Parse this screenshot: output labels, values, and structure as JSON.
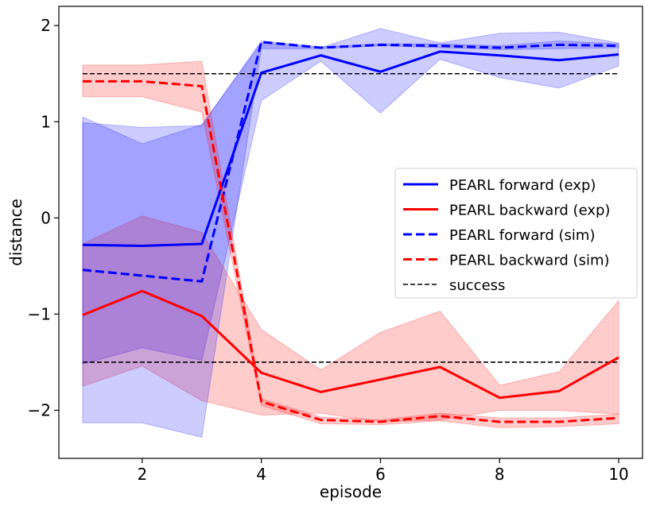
{
  "chart_data": {
    "type": "line",
    "title": "",
    "xlabel": "episode",
    "ylabel": "distance",
    "xlim": [
      0.6,
      10.4
    ],
    "ylim": [
      -2.5,
      2.2
    ],
    "xticks": [
      2,
      4,
      6,
      8,
      10
    ],
    "xtick_labels": [
      "2",
      "4",
      "6",
      "8",
      "10"
    ],
    "yticks": [
      -2,
      -1,
      0,
      1,
      2
    ],
    "ytick_labels": [
      "−2",
      "−1",
      "0",
      "1",
      "2"
    ],
    "grid": false,
    "legend_position": "center-right",
    "x": [
      1,
      2,
      3,
      4,
      5,
      6,
      7,
      8,
      9,
      10
    ],
    "series": [
      {
        "name": "PEARL forward (exp)",
        "color": "#0000ff",
        "style": "solid",
        "values": [
          -0.28,
          -0.29,
          -0.27,
          1.51,
          1.69,
          1.52,
          1.73,
          1.69,
          1.64,
          1.7
        ],
        "band_upper": [
          1.05,
          0.77,
          0.97,
          1.82,
          1.77,
          1.97,
          1.82,
          1.92,
          1.93,
          1.82
        ],
        "band_lower": [
          -1.52,
          -1.35,
          -1.48,
          1.22,
          1.63,
          1.09,
          1.65,
          1.46,
          1.35,
          1.58
        ]
      },
      {
        "name": "PEARL backward (exp)",
        "color": "#ff0000",
        "style": "solid",
        "values": [
          -1.01,
          -0.76,
          -1.02,
          -1.61,
          -1.81,
          -1.68,
          -1.55,
          -1.87,
          -1.8,
          -1.45
        ],
        "band_upper": [
          -0.27,
          0.02,
          -0.15,
          -1.16,
          -1.58,
          -1.19,
          -0.97,
          -1.74,
          -1.6,
          -0.86
        ],
        "band_lower": [
          -1.75,
          -1.54,
          -1.9,
          -2.05,
          -2.03,
          -2.12,
          -2.1,
          -2.0,
          -2.0,
          -2.04
        ]
      },
      {
        "name": "PEARL forward (sim)",
        "color": "#0000ff",
        "style": "dashed",
        "values": [
          -0.54,
          -0.6,
          -0.66,
          1.83,
          1.77,
          1.8,
          1.79,
          1.77,
          1.8,
          1.79
        ],
        "band_upper": [
          0.99,
          0.94,
          0.96,
          1.84,
          1.78,
          1.81,
          1.81,
          1.79,
          1.84,
          1.81
        ],
        "band_lower": [
          -2.13,
          -2.13,
          -2.28,
          1.76,
          1.76,
          1.79,
          1.77,
          1.75,
          1.76,
          1.77
        ]
      },
      {
        "name": "PEARL backward (sim)",
        "color": "#ff0000",
        "style": "dashed",
        "values": [
          1.42,
          1.42,
          1.37,
          -1.91,
          -2.1,
          -2.12,
          -2.06,
          -2.12,
          -2.12,
          -2.08
        ],
        "band_upper": [
          1.59,
          1.59,
          1.63,
          -1.88,
          -2.07,
          -2.1,
          -2.03,
          -2.08,
          -2.08,
          -2.04
        ],
        "band_lower": [
          1.26,
          1.26,
          1.1,
          -1.95,
          -2.14,
          -2.15,
          -2.11,
          -2.18,
          -2.17,
          -2.14
        ]
      }
    ],
    "reference_lines": [
      {
        "name": "success",
        "color": "#000000",
        "style": "dashed",
        "y": 1.5,
        "x_range": [
          1,
          10
        ]
      },
      {
        "name": "success",
        "color": "#000000",
        "style": "dashed",
        "y": -1.5,
        "x_range": [
          1,
          10
        ]
      }
    ],
    "legend": [
      {
        "label": "PEARL forward (exp)",
        "color": "#0000ff",
        "style": "solid"
      },
      {
        "label": "PEARL backward (exp)",
        "color": "#ff0000",
        "style": "solid"
      },
      {
        "label": "PEARL forward (sim)",
        "color": "#0000ff",
        "style": "dashed"
      },
      {
        "label": "PEARL backward (sim)",
        "color": "#ff0000",
        "style": "dashed"
      },
      {
        "label": "success",
        "color": "#000000",
        "style": "dashed-thin"
      }
    ]
  }
}
